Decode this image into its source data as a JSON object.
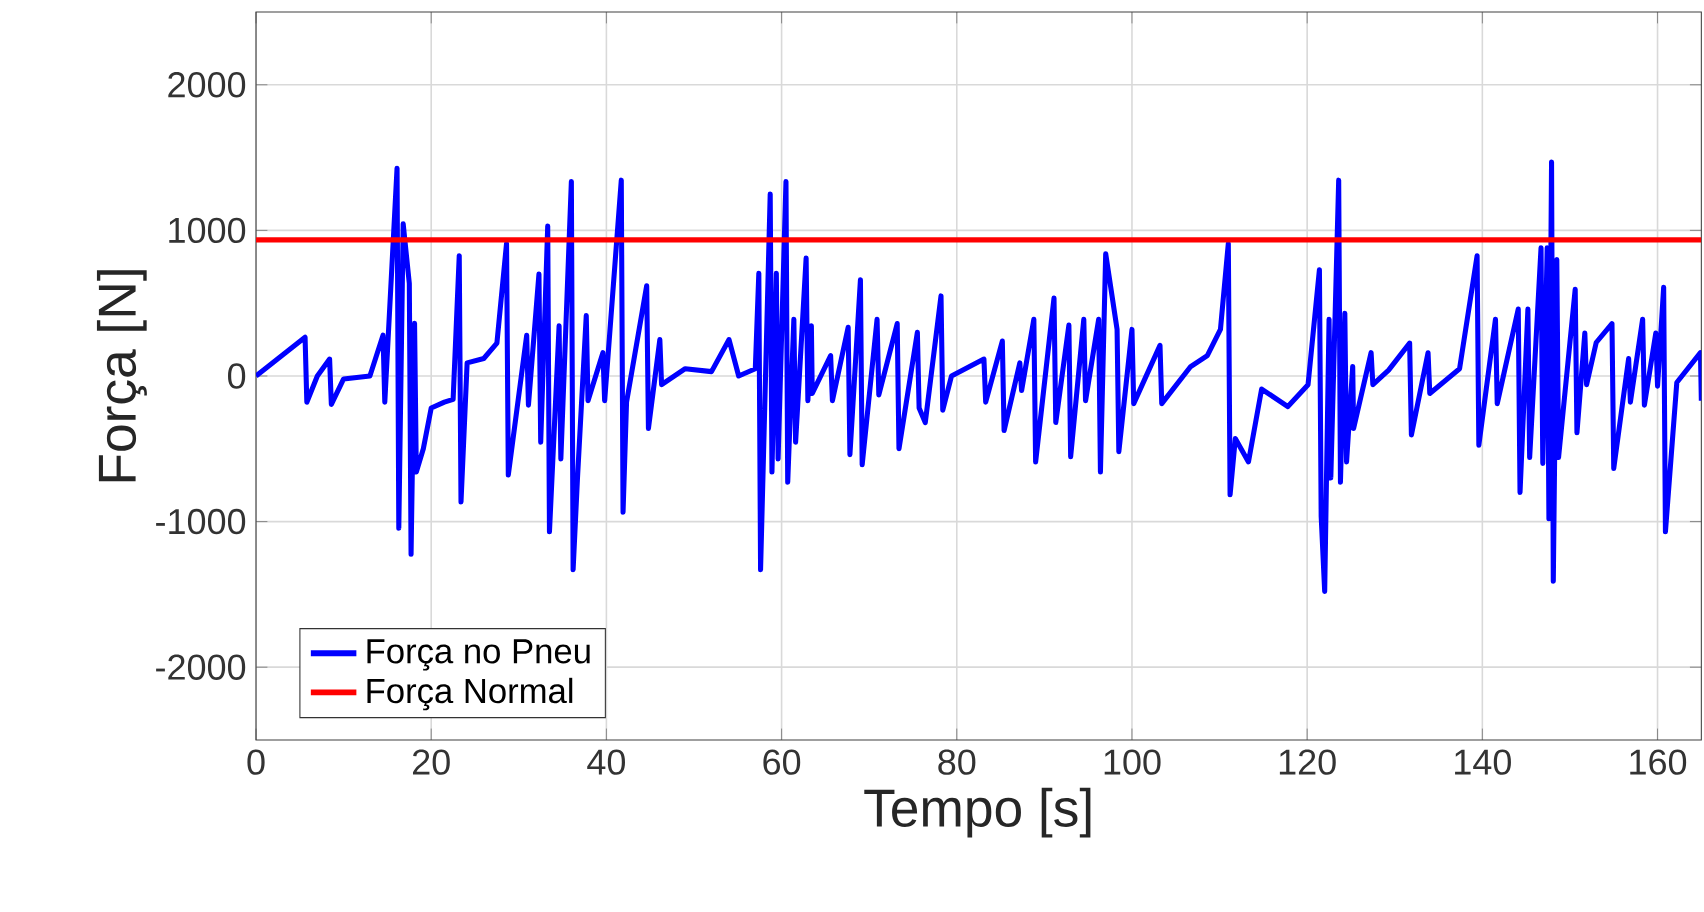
{
  "chart_data": {
    "type": "line",
    "xlabel": "Tempo [s]",
    "ylabel": "Força [N]",
    "xlim": [
      0,
      165
    ],
    "ylim": [
      -2500,
      2500
    ],
    "xticks": [
      0,
      20,
      40,
      60,
      80,
      100,
      120,
      140,
      160
    ],
    "yticks": [
      -2000,
      -1000,
      0,
      1000,
      2000
    ],
    "grid": true,
    "legend": "bottom left",
    "marker": "none",
    "line_style": "solid",
    "series": [
      {
        "name": "Força no Pneu",
        "color": "#0000ff",
        "x": [
          0,
          5.6,
          5.8,
          7,
          8.4,
          8.6,
          10,
          13,
          14.5,
          14.7,
          16.1,
          16.3,
          16.8,
          17.5,
          17.7,
          18.1,
          18.3,
          19.1,
          20,
          21.5,
          22.5,
          23.2,
          23.4,
          24.1,
          26,
          27.5,
          28.6,
          28.8,
          30.9,
          31.1,
          32.3,
          32.5,
          33.3,
          33.5,
          34.6,
          34.8,
          36,
          36.2,
          36.7,
          37.7,
          37.9,
          39.6,
          39.8,
          41.7,
          41.9,
          42.3,
          44.6,
          44.8,
          46.1,
          46.3,
          49,
          52,
          54,
          55.1,
          57,
          57.4,
          57.6,
          58.7,
          58.9,
          59.4,
          59.6,
          60.5,
          60.7,
          61.4,
          61.6,
          62.8,
          63.0,
          63.4,
          63.5,
          65.6,
          65.8,
          67.6,
          67.8,
          69,
          69.2,
          70.9,
          71.1,
          73.2,
          73.4,
          75.5,
          75.7,
          76.4,
          78.2,
          78.4,
          79.4,
          83.1,
          83.3,
          85.2,
          85.4,
          87.2,
          87.4,
          88.8,
          89,
          91.1,
          91.3,
          92.8,
          93,
          94.5,
          94.7,
          96.2,
          96.4,
          97,
          98.3,
          98.5,
          100,
          100.2,
          103.2,
          103.4,
          106.7,
          108.6,
          110.1,
          111,
          111.2,
          111.8,
          113.3,
          114.8,
          117.8,
          120.1,
          121.4,
          121.6,
          122,
          122.5,
          122.7,
          123.6,
          123.8,
          124.3,
          124.5,
          125.2,
          125.3,
          127.3,
          127.5,
          129.3,
          131.7,
          131.9,
          133.8,
          134,
          137.4,
          139.4,
          139.6,
          141.5,
          141.7,
          144.1,
          144.3,
          145.2,
          145.4,
          146.7,
          146.9,
          147.4,
          147.6,
          147.9,
          148.1,
          148.5,
          148.7,
          150.6,
          150.8,
          151.7,
          151.9,
          153,
          154.8,
          155,
          156.7,
          156.9,
          158.3,
          158.5,
          159.8,
          160,
          160.7,
          160.9,
          162.2,
          164.9,
          165
        ],
        "values": [
          0,
          266,
          -180,
          0,
          116,
          -195,
          -20,
          0,
          280,
          -180,
          1427,
          -1045,
          1045,
          635,
          -1225,
          362,
          -660,
          -500,
          -220,
          -180,
          -160,
          825,
          -865,
          90,
          120,
          226,
          910,
          -680,
          280,
          -200,
          700,
          -455,
          1030,
          -1070,
          345,
          -570,
          1335,
          -1330,
          -700,
          415,
          -170,
          160,
          -170,
          1345,
          -935,
          -180,
          620,
          -360,
          250,
          -60,
          50,
          30,
          250,
          0,
          50,
          705,
          -1330,
          1250,
          -660,
          705,
          -570,
          1335,
          -730,
          390,
          -455,
          810,
          -170,
          345,
          -120,
          140,
          -170,
          335,
          -540,
          660,
          -610,
          390,
          -130,
          360,
          -500,
          300,
          -220,
          -320,
          550,
          -235,
          0,
          116,
          -180,
          240,
          -375,
          90,
          -100,
          390,
          -590,
          535,
          -320,
          350,
          -555,
          390,
          -170,
          390,
          -660,
          840,
          320,
          -520,
          320,
          -190,
          210,
          -190,
          65,
          140,
          320,
          910,
          -815,
          -430,
          -590,
          -90,
          -210,
          -60,
          730,
          -965,
          -1480,
          390,
          -700,
          1345,
          -730,
          430,
          -590,
          65,
          -360,
          160,
          -60,
          40,
          226,
          -405,
          160,
          -120,
          50,
          825,
          -475,
          390,
          -190,
          460,
          -800,
          460,
          -560,
          880,
          -600,
          880,
          -980,
          1470,
          -1410,
          800,
          -560,
          595,
          -390,
          295,
          -60,
          230,
          360,
          -635,
          120,
          -180,
          390,
          -200,
          295,
          -70,
          610,
          -1070,
          -45,
          160,
          -170
        ]
      },
      {
        "name": "Força Normal",
        "color": "#ff0000",
        "x": [
          0,
          165
        ],
        "values": [
          935,
          935
        ]
      }
    ]
  }
}
